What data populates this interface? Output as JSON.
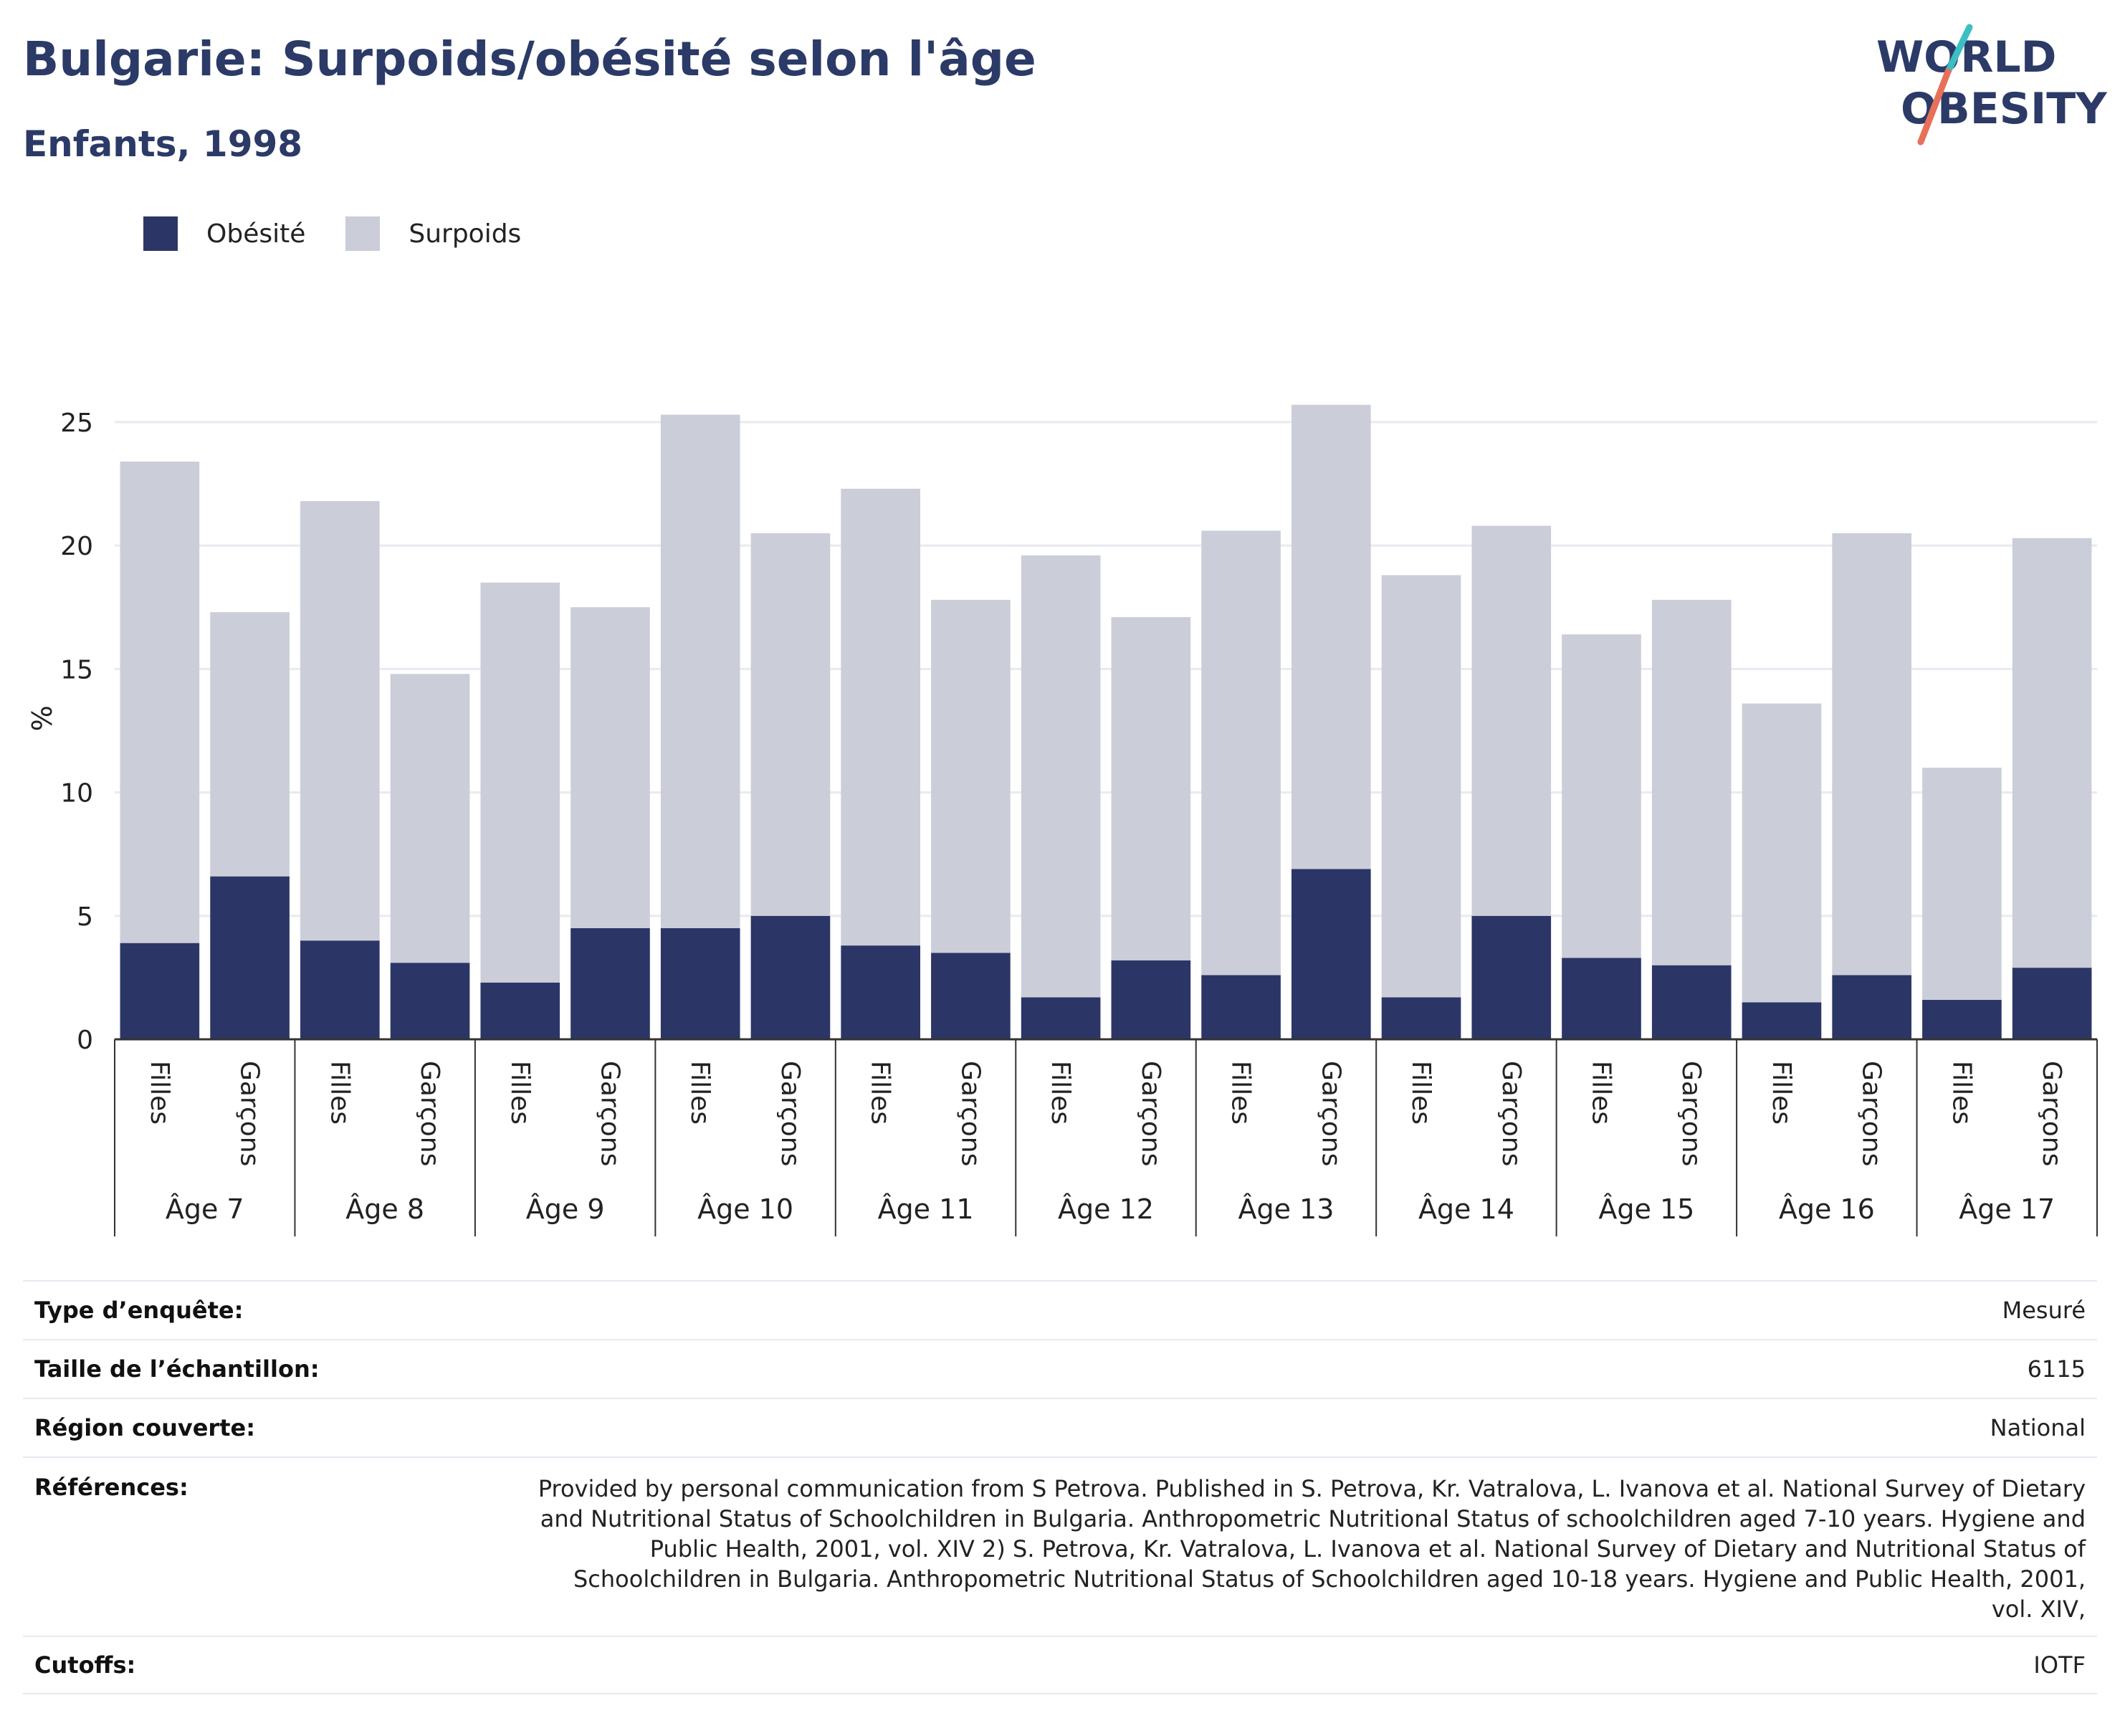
{
  "header": {
    "title": "Bulgarie: Surpoids/obésité selon l'âge",
    "subtitle": "Enfants, 1998"
  },
  "logo": {
    "line1": "WORLD",
    "line2": "OBESITY",
    "colors": {
      "text": "#2b3a67",
      "slash_top": "#3bbfc4",
      "slash_bottom": "#e8705a"
    }
  },
  "legend": {
    "items": [
      {
        "label": "Obésité",
        "color": "#2b3667"
      },
      {
        "label": "Surpoids",
        "color": "#cbcdd9"
      }
    ]
  },
  "chart_data": {
    "type": "bar",
    "stacked": true,
    "ylabel": "%",
    "ylim": [
      0,
      27
    ],
    "yticks": [
      0,
      5,
      10,
      15,
      20,
      25
    ],
    "grid": true,
    "legend_position": "top-left",
    "groups": [
      "Âge 7",
      "Âge 8",
      "Âge 9",
      "Âge 10",
      "Âge 11",
      "Âge 12",
      "Âge 13",
      "Âge 14",
      "Âge 15",
      "Âge 16",
      "Âge 17"
    ],
    "subcategories": [
      "Filles",
      "Garçons"
    ],
    "series": [
      {
        "name": "Obésité",
        "color": "#2b3667",
        "values": [
          3.9,
          6.6,
          4.0,
          3.1,
          2.3,
          4.5,
          4.5,
          5.0,
          3.8,
          3.5,
          1.7,
          3.2,
          2.6,
          6.9,
          1.7,
          5.0,
          3.3,
          3.0,
          1.5,
          2.6,
          1.6,
          2.9
        ]
      },
      {
        "name": "Surpoids",
        "color": "#cbcdd9",
        "values": [
          19.5,
          10.7,
          17.8,
          11.7,
          16.2,
          13.0,
          20.8,
          15.5,
          18.5,
          14.3,
          17.9,
          13.9,
          18.0,
          18.8,
          17.1,
          15.8,
          13.1,
          14.8,
          12.1,
          17.9,
          9.4,
          17.4
        ]
      }
    ]
  },
  "info": {
    "rows": [
      {
        "label": "Type d’enquête:",
        "value": "Mesuré"
      },
      {
        "label": "Taille de l’échantillon:",
        "value": "6115"
      },
      {
        "label": "Région couverte:",
        "value": "National"
      },
      {
        "label": "Références:",
        "value": "Provided by personal communication from S Petrova. Published in S. Petrova, Kr. Vatralova, L. Ivanova et al. National Survey of Dietary and Nutritional Status of Schoolchildren in Bulgaria. Anthropometric Nutritional Status of schoolchildren aged 7-10 years. Hygiene and Public Health, 2001, vol. XIV 2) S. Petrova, Kr. Vatralova, L. Ivanova et al. National Survey of Dietary and Nutritional Status of Schoolchildren in Bulgaria. Anthropometric Nutritional Status of Schoolchildren aged 10-18 years. Hygiene and Public Health, 2001, vol. XIV,"
      },
      {
        "label": "Cutoffs:",
        "value": "IOTF"
      }
    ]
  }
}
